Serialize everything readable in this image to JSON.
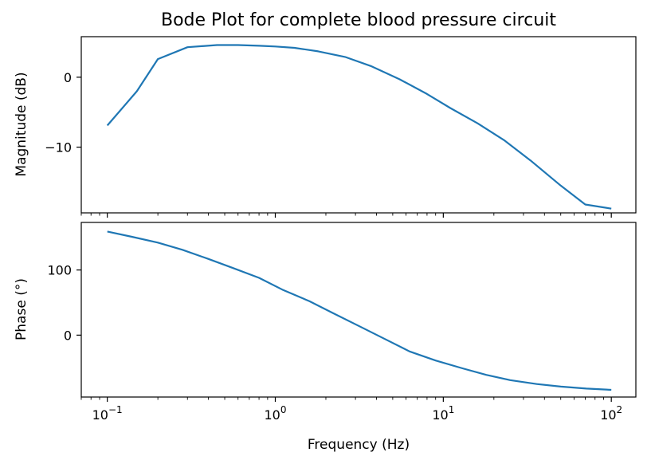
{
  "colors": {
    "line": "#1f77b4",
    "axes": "#000000",
    "background": "#ffffff"
  },
  "chart_data": [
    {
      "type": "line",
      "title": "Bode Plot for complete blood pressure circuit",
      "xlabel": "",
      "ylabel": "Magnitude (dB)",
      "xscale": "log",
      "xlim": [
        0.07,
        140
      ],
      "ylim": [
        -19.4,
        5.8
      ],
      "yticks": [
        0,
        -10
      ],
      "ytick_labels": [
        "0",
        "−10"
      ],
      "grid": false,
      "x": [
        0.1,
        0.15,
        0.2,
        0.3,
        0.45,
        0.6,
        0.8,
        1.0,
        1.3,
        1.8,
        2.6,
        3.7,
        5.5,
        8,
        11,
        16,
        23,
        33,
        50,
        70,
        100
      ],
      "series": [
        {
          "values": [
            -6.9,
            -2.0,
            2.6,
            4.3,
            4.6,
            4.6,
            4.5,
            4.4,
            4.2,
            3.7,
            2.9,
            1.6,
            -0.3,
            -2.4,
            -4.4,
            -6.6,
            -9.0,
            -11.9,
            -15.5,
            -18.2,
            -18.8
          ]
        }
      ]
    },
    {
      "type": "line",
      "title": "",
      "xlabel": "Frequency (Hz)",
      "ylabel": "Phase (°)",
      "xscale": "log",
      "xlim": [
        0.07,
        140
      ],
      "ylim": [
        -95,
        173
      ],
      "xticks": [
        0.1,
        1,
        10,
        100
      ],
      "xtick_labels": [
        {
          "base": "10",
          "exp": "−1"
        },
        {
          "base": "10",
          "exp": "0"
        },
        {
          "base": "10",
          "exp": "1"
        },
        {
          "base": "10",
          "exp": "2"
        }
      ],
      "yticks": [
        100,
        0
      ],
      "ytick_labels": [
        "100",
        "0"
      ],
      "grid": false,
      "x": [
        0.1,
        0.14,
        0.2,
        0.28,
        0.4,
        0.56,
        0.8,
        1.1,
        1.6,
        2.2,
        3.2,
        4.5,
        6.3,
        9,
        13,
        18,
        25,
        36,
        50,
        71,
        100
      ],
      "series": [
        {
          "values": [
            159,
            151,
            142,
            131,
            117,
            103,
            88,
            70,
            52,
            34,
            13,
            -6,
            -25,
            -39,
            -51,
            -61,
            -69,
            -75,
            -79,
            -82,
            -84
          ]
        }
      ]
    }
  ]
}
